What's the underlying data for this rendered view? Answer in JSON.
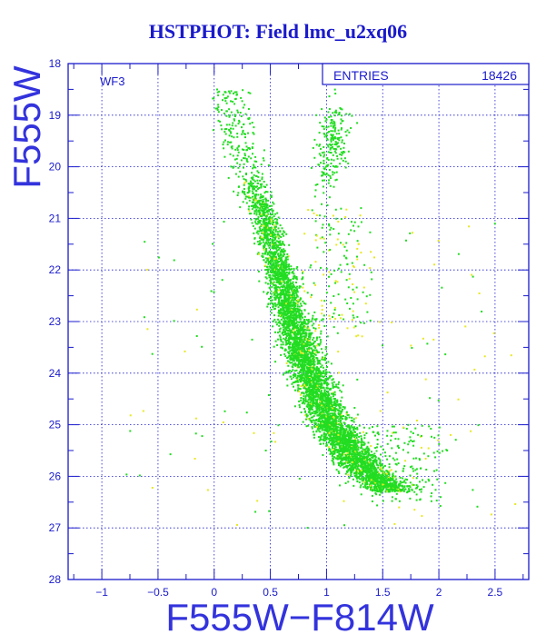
{
  "title": "HSTPHOT: Field lmc_u2xq06",
  "chart_data": {
    "type": "scatter",
    "title": "HSTPHOT: Field lmc_u2xq06",
    "xlabel": "F555W−F814W",
    "ylabel": "F555W",
    "xlim": [
      -1.3,
      2.8
    ],
    "ylim": [
      28,
      18
    ],
    "y_inverted": true,
    "x_ticks": [
      -1,
      -0.5,
      0,
      0.5,
      1,
      1.5,
      2,
      2.5
    ],
    "x_tick_labels": [
      "−1",
      "−0.5",
      "0",
      "0.5",
      "1",
      "1.5",
      "2",
      "2.5"
    ],
    "y_ticks": [
      18,
      19,
      20,
      21,
      22,
      23,
      24,
      25,
      26,
      27,
      28
    ],
    "y_tick_labels": [
      "18",
      "19",
      "20",
      "21",
      "22",
      "23",
      "24",
      "25",
      "26",
      "27",
      "28"
    ],
    "grid": true,
    "panel_label": "WF3",
    "stats_box": {
      "label": "ENTRIES",
      "value": "18426"
    },
    "series": [
      {
        "color": "#22dd22",
        "point_count_approx": 18000
      },
      {
        "color": "#e8e822",
        "point_count_approx": 400
      }
    ],
    "main_sequence_ridge": [
      {
        "y": 20.0,
        "x": 0.3
      },
      {
        "y": 21.0,
        "x": 0.45
      },
      {
        "y": 22.0,
        "x": 0.58
      },
      {
        "y": 23.0,
        "x": 0.7
      },
      {
        "y": 24.0,
        "x": 0.85
      },
      {
        "y": 25.0,
        "x": 1.05
      },
      {
        "y": 25.8,
        "x": 1.3
      },
      {
        "y": 26.2,
        "x": 1.55
      }
    ],
    "red_giant_clump": {
      "x": 1.05,
      "y": 19.6
    }
  },
  "colors": {
    "frame": "#1a1acc",
    "grid": "#1a1acc",
    "point_main": "#22dd22",
    "point_alt": "#e8e822",
    "background": "#ffffff"
  }
}
